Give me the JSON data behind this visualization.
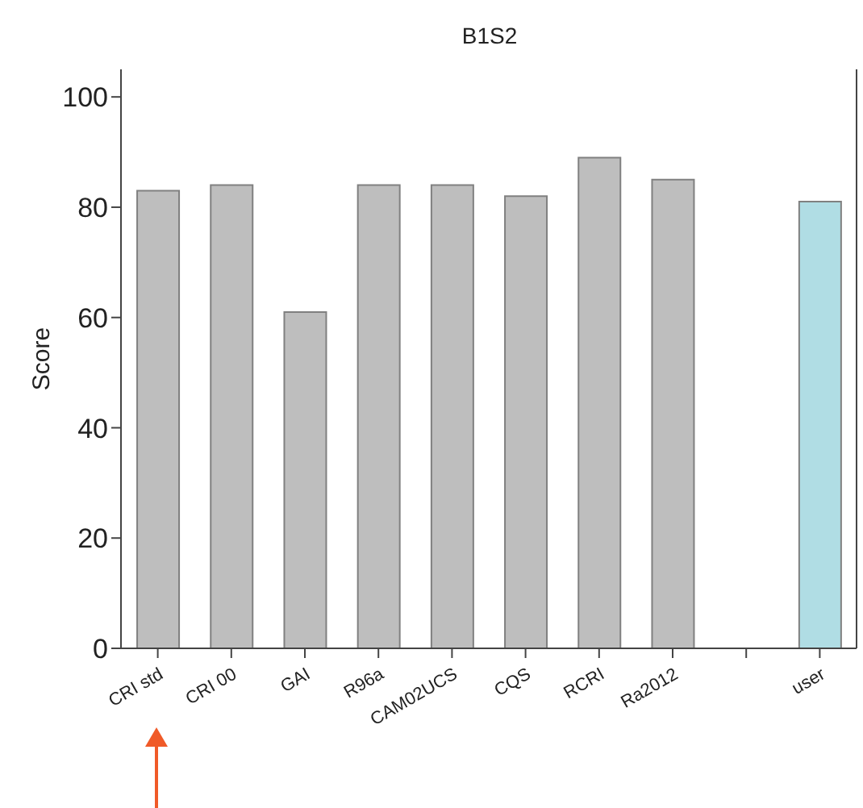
{
  "chart_data": {
    "type": "bar",
    "title": "B1S2",
    "ylabel": "Score",
    "categories": [
      "CRI std",
      "CRI 00",
      "GAI",
      "R96a",
      "CAM02UCS",
      "CQS",
      "RCRI",
      "Ra2012",
      null,
      "user"
    ],
    "values": [
      83,
      84,
      61,
      84,
      84,
      82,
      89,
      85,
      null,
      81
    ],
    "colors": [
      "#bebebe",
      "#bebebe",
      "#bebebe",
      "#bebebe",
      "#bebebe",
      "#bebebe",
      "#bebebe",
      "#bebebe",
      "#bebebe",
      "#b0dde4"
    ],
    "ylim": [
      0,
      105
    ],
    "yticks": [
      0,
      20,
      40,
      60,
      80,
      100
    ]
  }
}
